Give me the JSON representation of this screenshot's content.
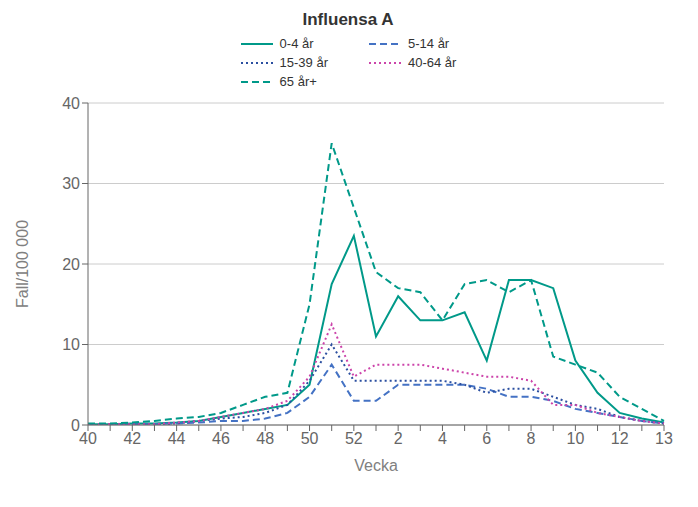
{
  "chart_data": {
    "type": "line",
    "title": "Influensa A",
    "x_label": "Vecka",
    "y_label": "Fall/100 000",
    "categories": [
      "40",
      null,
      "42",
      null,
      "44",
      null,
      "46",
      null,
      "48",
      null,
      "50",
      null,
      "52",
      null,
      "2",
      null,
      "4",
      null,
      "6",
      null,
      "8",
      null,
      "10",
      null,
      "12",
      null,
      "13"
    ],
    "ylim": [
      0,
      40
    ],
    "yticks": [
      0,
      10,
      20,
      30,
      40
    ],
    "grid": true,
    "legend": "top",
    "series": [
      {
        "name": "0-4 år",
        "color": "#009989",
        "line_style": "solid",
        "values": [
          0.1,
          0.1,
          0.2,
          0.2,
          0.3,
          0.5,
          1.0,
          1.5,
          2.0,
          2.5,
          5.0,
          17.5,
          23.5,
          11.0,
          16.0,
          13.0,
          13.0,
          14.0,
          8.0,
          18.0,
          18.0,
          17.0,
          8.0,
          4.0,
          1.5,
          0.8,
          0.3
        ]
      },
      {
        "name": "5-14 år",
        "color": "#4472C4",
        "line_style": "dashed",
        "values": [
          0.1,
          0.1,
          0.1,
          0.1,
          0.2,
          0.3,
          0.5,
          0.5,
          0.8,
          1.5,
          3.5,
          7.5,
          3.0,
          3.0,
          5.0,
          5.0,
          5.0,
          5.0,
          4.5,
          3.5,
          3.5,
          3.0,
          2.0,
          1.5,
          1.0,
          0.5,
          0.2
        ]
      },
      {
        "name": "15-39 år",
        "color": "#2B4FA0",
        "line_style": "dotted",
        "values": [
          0.1,
          0.1,
          0.1,
          0.1,
          0.2,
          0.5,
          0.8,
          1.0,
          1.5,
          2.5,
          5.5,
          10.0,
          5.5,
          5.5,
          5.5,
          5.5,
          5.5,
          5.0,
          4.0,
          4.5,
          4.5,
          3.5,
          2.5,
          2.0,
          1.0,
          0.5,
          0.2
        ]
      },
      {
        "name": "40-64 år",
        "color": "#CC44AA",
        "line_style": "dotted",
        "values": [
          0.1,
          0.1,
          0.1,
          0.1,
          0.3,
          0.5,
          1.0,
          1.5,
          2.0,
          3.0,
          6.0,
          12.5,
          6.0,
          7.5,
          7.5,
          7.5,
          7.0,
          6.5,
          6.0,
          6.0,
          5.5,
          2.5,
          2.5,
          1.5,
          1.0,
          0.5,
          0.2
        ]
      },
      {
        "name": "65 år+",
        "color": "#009989",
        "line_style": "dashed",
        "values": [
          0.2,
          0.2,
          0.3,
          0.5,
          0.8,
          1.0,
          1.5,
          2.5,
          3.5,
          4.0,
          15.0,
          35.0,
          27.0,
          19.0,
          17.0,
          16.5,
          13.0,
          17.5,
          18.0,
          16.5,
          18.0,
          8.5,
          7.5,
          6.5,
          3.5,
          2.0,
          0.5
        ]
      }
    ]
  }
}
